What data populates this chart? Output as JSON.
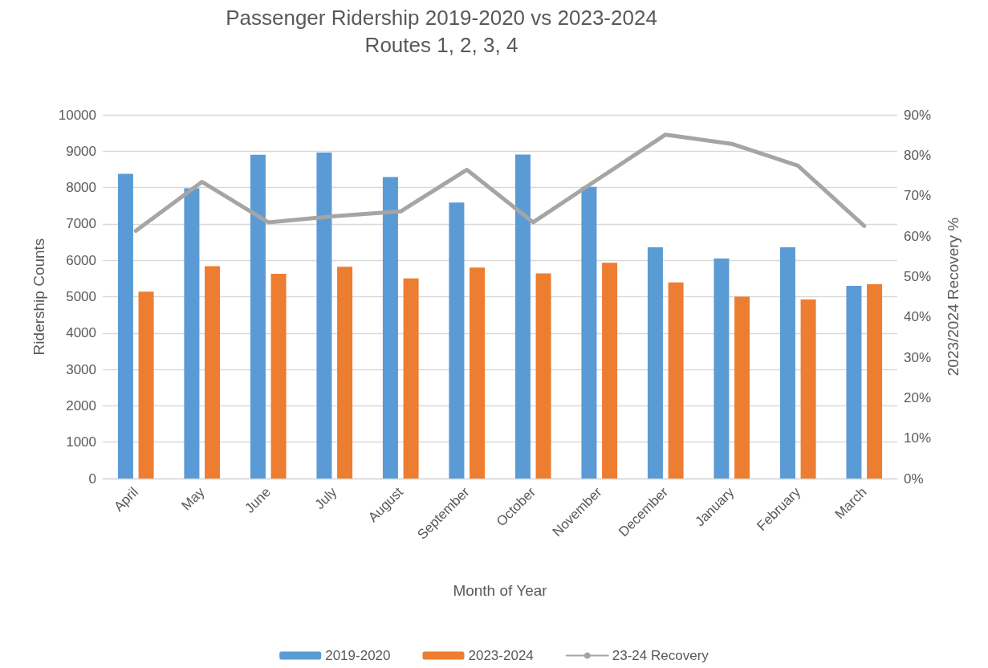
{
  "chart_data": {
    "type": "bar",
    "title": "Passenger Ridership 2019-2020 vs 2023-2024",
    "subtitle": "Routes 1, 2, 3, 4",
    "xlabel": "Month of Year",
    "ylabel": "Ridership Counts",
    "y2label": "2023/2024 Recovery %",
    "categories": [
      "April",
      "May",
      "June",
      "July",
      "August",
      "September",
      "October",
      "November",
      "December",
      "January",
      "February",
      "March"
    ],
    "series": [
      {
        "name": "2019-2020",
        "color": "#5b9bd5",
        "values": [
          8380,
          7980,
          8900,
          8960,
          8290,
          7590,
          8910,
          8020,
          6360,
          6050,
          6360,
          5300
        ]
      },
      {
        "name": "2023-2024",
        "color": "#ed7d31",
        "values": [
          5140,
          5840,
          5630,
          5820,
          5500,
          5800,
          5640,
          5930,
          5390,
          5000,
          4920,
          5340
        ]
      },
      {
        "name": "23-24 Recovery",
        "type": "line",
        "axis": "y2",
        "color": "#a5a5a5",
        "values": [
          61.3,
          73.4,
          63.4,
          64.9,
          66.1,
          76.4,
          63.4,
          74.3,
          85.1,
          82.8,
          77.4,
          62.5
        ]
      }
    ],
    "ylim": [
      0,
      10000
    ],
    "yticks": [
      0,
      1000,
      2000,
      3000,
      4000,
      5000,
      6000,
      7000,
      8000,
      9000,
      10000
    ],
    "y2lim": [
      0,
      90
    ],
    "y2ticks": [
      {
        "value": 0,
        "label": "0%"
      },
      {
        "value": 10,
        "label": "10%"
      },
      {
        "value": 20,
        "label": "20%"
      },
      {
        "value": 30,
        "label": "30%"
      },
      {
        "value": 40,
        "label": "40%"
      },
      {
        "value": 50,
        "label": "50%"
      },
      {
        "value": 60,
        "label": "60%"
      },
      {
        "value": 70,
        "label": "70%"
      },
      {
        "value": 80,
        "label": "80%"
      },
      {
        "value": 90,
        "label": "90%"
      }
    ],
    "grid": "y",
    "legend": "bottom",
    "marker": "none",
    "line_style": "solid"
  }
}
